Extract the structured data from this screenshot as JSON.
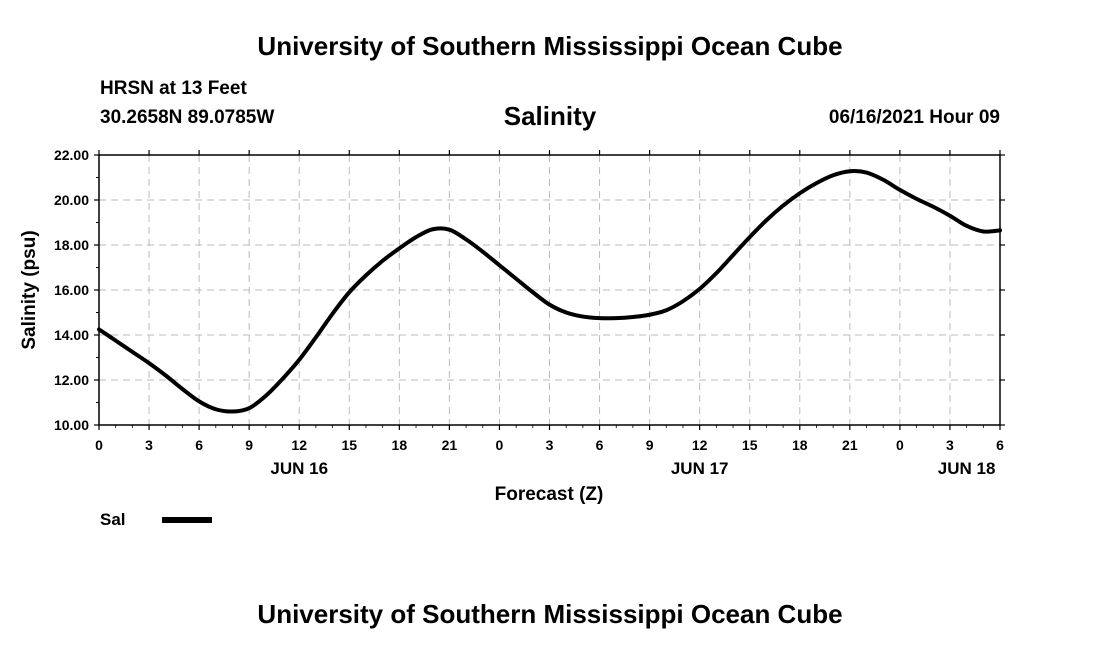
{
  "header": {
    "title": "University of Southern Mississippi Ocean Cube",
    "station": "HRSN at 13 Feet",
    "coords": "30.2658N  89.0785W",
    "date": "06/16/2021 Hour 09"
  },
  "footer": {
    "title": "University of Southern Mississippi Ocean Cube"
  },
  "legend": {
    "label": "Sal"
  },
  "chart_data": {
    "type": "line",
    "title": "Salinity",
    "xlabel": "Forecast (Z)",
    "ylabel": "Salinity (psu)",
    "ylim": [
      10,
      22
    ],
    "yticks": [
      "10.00",
      "12.00",
      "14.00",
      "16.00",
      "18.00",
      "20.00",
      "22.00"
    ],
    "xlim": [
      0,
      54
    ],
    "xticks": [
      "0",
      "3",
      "6",
      "9",
      "12",
      "15",
      "18",
      "21",
      "0",
      "3",
      "6",
      "9",
      "12",
      "15",
      "18",
      "21",
      "0",
      "3",
      "6"
    ],
    "day_labels": [
      {
        "label": "JUN 16",
        "hour": 12
      },
      {
        "label": "JUN 17",
        "hour": 36
      },
      {
        "label": "JUN 18",
        "hour": 52
      }
    ],
    "grid": true,
    "series": [
      {
        "name": "Sal",
        "color": "#000000",
        "x": [
          0,
          1,
          2,
          3,
          4,
          5,
          6,
          7,
          8,
          9,
          10,
          11,
          12,
          13,
          14,
          15,
          16,
          17,
          18,
          19,
          20,
          21,
          22,
          23,
          24,
          25,
          26,
          27,
          28,
          29,
          30,
          31,
          32,
          33,
          34,
          35,
          36,
          37,
          38,
          39,
          40,
          41,
          42,
          43,
          44,
          45,
          46,
          47,
          48,
          49,
          50,
          51,
          52,
          53,
          54
        ],
        "values": [
          14.25,
          13.75,
          13.25,
          12.75,
          12.2,
          11.6,
          11.05,
          10.7,
          10.6,
          10.75,
          11.3,
          12.05,
          12.9,
          13.9,
          14.95,
          15.9,
          16.65,
          17.3,
          17.85,
          18.35,
          18.7,
          18.68,
          18.25,
          17.7,
          17.1,
          16.5,
          15.9,
          15.35,
          15.0,
          14.82,
          14.75,
          14.75,
          14.8,
          14.9,
          15.1,
          15.5,
          16.05,
          16.75,
          17.55,
          18.35,
          19.1,
          19.75,
          20.3,
          20.75,
          21.1,
          21.28,
          21.22,
          20.9,
          20.45,
          20.05,
          19.7,
          19.3,
          18.85,
          18.6,
          18.65
        ]
      }
    ]
  }
}
